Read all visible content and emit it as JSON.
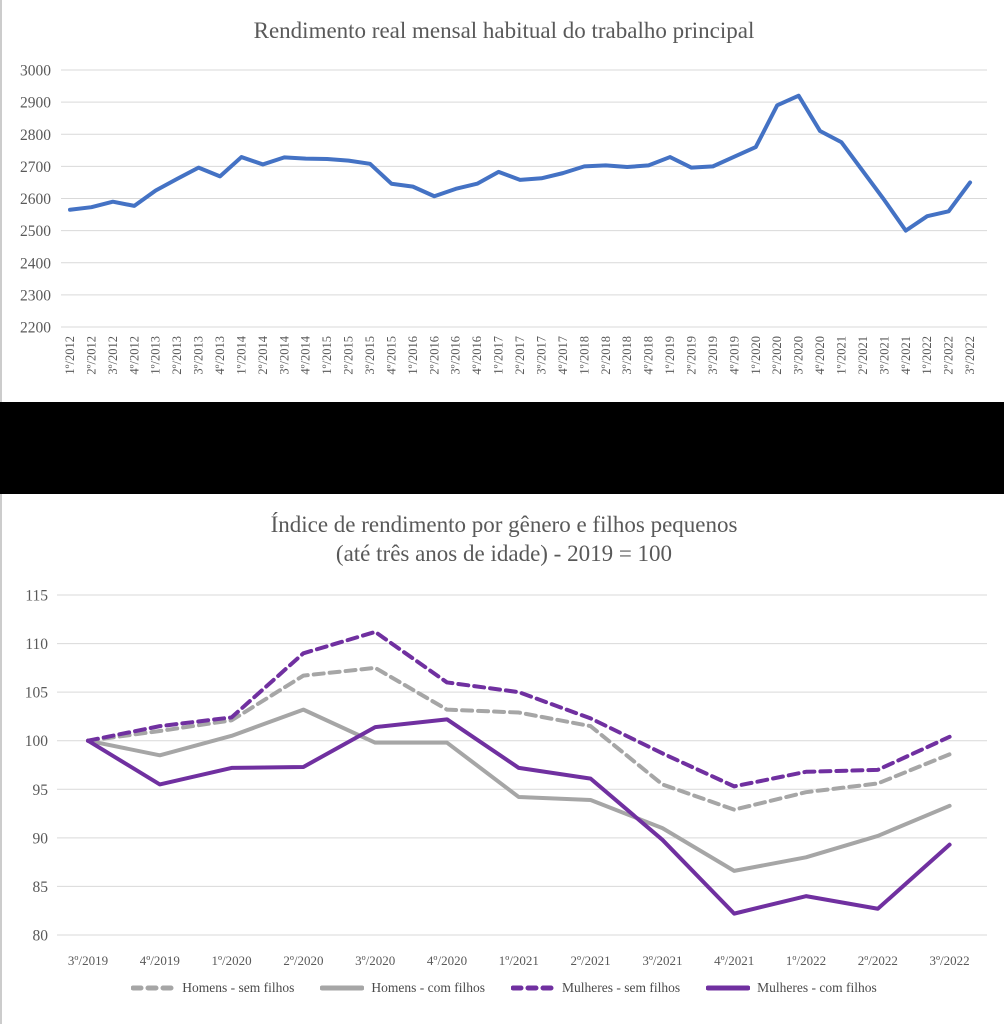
{
  "page": {
    "background": "#ffffff",
    "divider_color": "#000000",
    "axis_label_color": "#595959",
    "gridline_color": "#d9d9d9"
  },
  "chart_data": [
    {
      "type": "line",
      "title": "Rendimento real mensal habitual do trabalho principal",
      "xlabel": "",
      "ylabel": "",
      "ylim": [
        2200,
        3000
      ],
      "yticks": [
        3000,
        2900,
        2800,
        2700,
        2600,
        2500,
        2400,
        2300,
        2200
      ],
      "grid": true,
      "legend_position": "none",
      "categories": [
        "1º/2012",
        "2º/2012",
        "3º/2012",
        "4º/2012",
        "1º/2013",
        "2º/2013",
        "3º/2013",
        "4º/2013",
        "1º/2014",
        "2º/2014",
        "3º/2014",
        "4º/2014",
        "1º/2015",
        "2º/2015",
        "3º/2015",
        "4º/2015",
        "1º/2016",
        "2º/2016",
        "3º/2016",
        "4º/2016",
        "1º/2017",
        "2º/2017",
        "3º/2017",
        "4º/2017",
        "1º/2018",
        "2º/2018",
        "3º/2018",
        "4º/2018",
        "1º/2019",
        "2º/2019",
        "3º/2019",
        "4º/2019",
        "1º/2020",
        "2º/2020",
        "3º/2020",
        "4º/2020",
        "1º/2021",
        "2º/2021",
        "3º/2021",
        "4º/2021",
        "1º/2022",
        "2º/2022",
        "3º/2022"
      ],
      "series": [
        {
          "name": "Rendimento real mensal habitual",
          "color": "#4472C4",
          "dash": false,
          "values": [
            2565,
            2573,
            2590,
            2577,
            2625,
            2661,
            2696,
            2669,
            2729,
            2706,
            2728,
            2724,
            2723,
            2718,
            2708,
            2646,
            2637,
            2607,
            2630,
            2646,
            2683,
            2658,
            2663,
            2679,
            2700,
            2703,
            2698,
            2703,
            2729,
            2696,
            2700,
            2730,
            2760,
            2890,
            2920,
            2810,
            2775,
            2685,
            2595,
            2500,
            2545,
            2560,
            2650
          ]
        }
      ]
    },
    {
      "type": "line",
      "title": "Índice de rendimento por gênero e filhos pequenos",
      "subtitle": "(até três anos de idade) - 2019 = 100",
      "xlabel": "",
      "ylabel": "",
      "ylim": [
        80,
        115
      ],
      "yticks": [
        115,
        110,
        105,
        100,
        95,
        90,
        85,
        80
      ],
      "grid": true,
      "legend_position": "bottom",
      "categories": [
        "3º/2019",
        "4º/2019",
        "1º/2020",
        "2º/2020",
        "3º/2020",
        "4º/2020",
        "1º/2021",
        "2º/2021",
        "3º/2021",
        "4º/2021",
        "1º/2022",
        "2º/2022",
        "3º/2022"
      ],
      "series": [
        {
          "name": "Homens - sem filhos",
          "color": "#A6A6A6",
          "dash": true,
          "values": [
            100,
            101,
            102.1,
            106.7,
            107.5,
            103.2,
            102.9,
            101.5,
            95.5,
            92.9,
            94.7,
            95.6,
            98.6
          ]
        },
        {
          "name": "Homens - com filhos",
          "color": "#A6A6A6",
          "dash": false,
          "values": [
            100,
            98.5,
            100.5,
            103.2,
            99.8,
            99.8,
            94.2,
            93.9,
            91,
            86.6,
            88,
            90.2,
            93.3
          ]
        },
        {
          "name": "Mulheres - sem filhos",
          "color": "#7030A0",
          "dash": true,
          "values": [
            100,
            101.5,
            102.4,
            109,
            111.2,
            106,
            105,
            102.3,
            98.7,
            95.3,
            96.8,
            97,
            100.4
          ]
        },
        {
          "name": "Mulheres - com filhos",
          "color": "#7030A0",
          "dash": false,
          "values": [
            100,
            95.5,
            97.2,
            97.3,
            101.4,
            102.2,
            97.2,
            96.1,
            89.8,
            82.2,
            84,
            82.7,
            89.3
          ]
        }
      ]
    }
  ]
}
